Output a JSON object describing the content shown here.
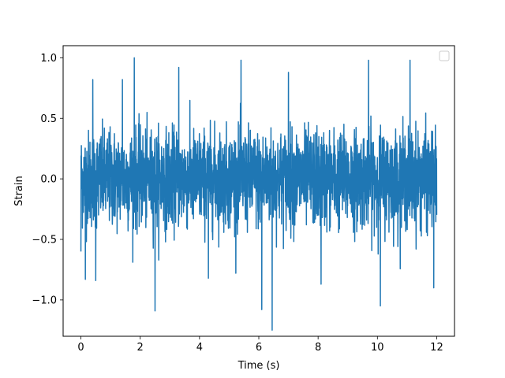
{
  "chart_data": {
    "type": "line",
    "title": "",
    "xlabel": "Time (s)",
    "ylabel": "Strain",
    "xlim": [
      -0.6,
      12.6
    ],
    "ylim": [
      -1.3,
      1.1
    ],
    "x_ticks": [
      0,
      2,
      4,
      6,
      8,
      10,
      12
    ],
    "x_tick_labels": [
      "0",
      "2",
      "4",
      "6",
      "8",
      "10",
      "12"
    ],
    "y_ticks": [
      -1.0,
      -0.5,
      0.0,
      0.5,
      1.0
    ],
    "y_tick_labels": [
      "−1.0",
      "−0.5",
      "0.0",
      "0.5",
      "1.0"
    ],
    "grid": false,
    "legend": {
      "placement": "upper right",
      "entries": []
    },
    "series": [
      {
        "color": "#1f77b4",
        "x_range": [
          0,
          12
        ],
        "y_range": [
          -1.25,
          1.0
        ],
        "peaks": [
          {
            "x": 0.0,
            "y": 0.83
          },
          {
            "x": 0.0,
            "y": -0.6
          },
          {
            "x": 0.15,
            "y": -0.83
          },
          {
            "x": 0.4,
            "y": 0.82
          },
          {
            "x": 0.5,
            "y": -0.84
          },
          {
            "x": 1.4,
            "y": 0.82
          },
          {
            "x": 1.8,
            "y": 1.0
          },
          {
            "x": 2.5,
            "y": -1.09
          },
          {
            "x": 3.3,
            "y": 0.92
          },
          {
            "x": 4.3,
            "y": -0.82
          },
          {
            "x": 5.4,
            "y": 0.98
          },
          {
            "x": 6.1,
            "y": -1.08
          },
          {
            "x": 6.45,
            "y": -1.25
          },
          {
            "x": 7.0,
            "y": 0.88
          },
          {
            "x": 8.1,
            "y": -0.87
          },
          {
            "x": 9.7,
            "y": 0.98
          },
          {
            "x": 10.1,
            "y": -1.05
          },
          {
            "x": 11.1,
            "y": 0.98
          },
          {
            "x": 11.9,
            "y": -0.9
          }
        ],
        "typical_envelope": [
          -0.45,
          0.42
        ]
      }
    ]
  }
}
